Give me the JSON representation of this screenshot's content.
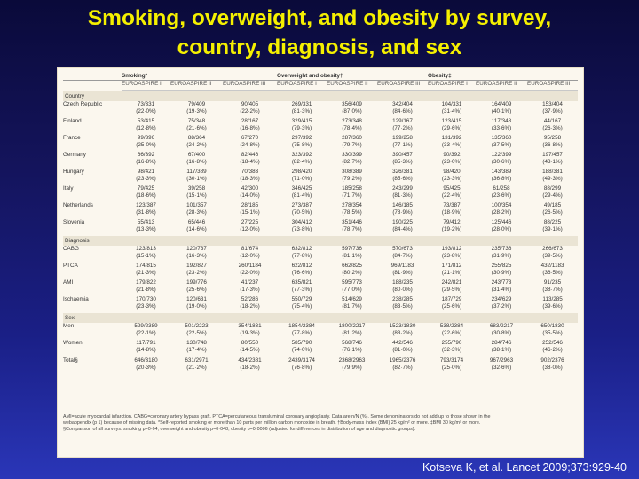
{
  "title": {
    "line1": "Smoking, overweight, and obesity by survey,",
    "line2": "country, diagnosis, and sex"
  },
  "table": {
    "groups": [
      "Smoking*",
      "Overweight and obesity†",
      "Obesity‡"
    ],
    "surveys": [
      "EUROASPIRE I",
      "EUROASPIRE II",
      "EUROASPIRE III"
    ],
    "sections": [
      {
        "name": "Country",
        "rows": [
          {
            "label": "Czech Republic",
            "values": [
              [
                "73/331",
                "(22·0%)"
              ],
              [
                "79/409",
                "(19·3%)"
              ],
              [
                "90/405",
                "(22·2%)"
              ],
              [
                "269/331",
                "(81·3%)"
              ],
              [
                "356/409",
                "(87·0%)"
              ],
              [
                "342/404",
                "(84·6%)"
              ],
              [
                "104/331",
                "(31·4%)"
              ],
              [
                "164/409",
                "(40·1%)"
              ],
              [
                "153/404",
                "(37·9%)"
              ]
            ]
          },
          {
            "label": "Finland",
            "values": [
              [
                "53/415",
                "(12·8%)"
              ],
              [
                "75/348",
                "(21·6%)"
              ],
              [
                "28/167",
                "(16·8%)"
              ],
              [
                "329/415",
                "(79·3%)"
              ],
              [
                "273/348",
                "(78·4%)"
              ],
              [
                "129/167",
                "(77·2%)"
              ],
              [
                "123/415",
                "(29·6%)"
              ],
              [
                "117/348",
                "(33·6%)"
              ],
              [
                "44/167",
                "(26·3%)"
              ]
            ]
          },
          {
            "label": "France",
            "values": [
              [
                "99/396",
                "(25·0%)"
              ],
              [
                "88/364",
                "(24·2%)"
              ],
              [
                "67/270",
                "(24·8%)"
              ],
              [
                "297/392",
                "(75·8%)"
              ],
              [
                "287/360",
                "(79·7%)"
              ],
              [
                "199/258",
                "(77·1%)"
              ],
              [
                "131/392",
                "(33·4%)"
              ],
              [
                "135/360",
                "(37·5%)"
              ],
              [
                "95/258",
                "(36·8%)"
              ]
            ]
          },
          {
            "label": "Germany",
            "values": [
              [
                "66/392",
                "(16·8%)"
              ],
              [
                "67/400",
                "(16·8%)"
              ],
              [
                "82/446",
                "(18·4%)"
              ],
              [
                "323/392",
                "(82·4%)"
              ],
              [
                "330/399",
                "(82·7%)"
              ],
              [
                "390/457",
                "(85·3%)"
              ],
              [
                "90/392",
                "(23·0%)"
              ],
              [
                "122/399",
                "(30·6%)"
              ],
              [
                "197/457",
                "(43·1%)"
              ]
            ]
          },
          {
            "label": "Hungary",
            "values": [
              [
                "98/421",
                "(23·3%)"
              ],
              [
                "117/389",
                "(30·1%)"
              ],
              [
                "70/383",
                "(18·3%)"
              ],
              [
                "298/420",
                "(71·0%)"
              ],
              [
                "308/389",
                "(79·2%)"
              ],
              [
                "326/381",
                "(85·6%)"
              ],
              [
                "98/420",
                "(23·3%)"
              ],
              [
                "143/389",
                "(36·8%)"
              ],
              [
                "188/381",
                "(49·3%)"
              ]
            ]
          },
          {
            "label": "Italy",
            "values": [
              [
                "79/425",
                "(18·6%)"
              ],
              [
                "39/258",
                "(15·1%)"
              ],
              [
                "42/300",
                "(14·0%)"
              ],
              [
                "346/425",
                "(81·4%)"
              ],
              [
                "185/258",
                "(71·7%)"
              ],
              [
                "243/299",
                "(81·3%)"
              ],
              [
                "95/425",
                "(22·4%)"
              ],
              [
                "61/258",
                "(23·6%)"
              ],
              [
                "88/299",
                "(29·4%)"
              ]
            ]
          },
          {
            "label": "Netherlands",
            "values": [
              [
                "123/387",
                "(31·8%)"
              ],
              [
                "101/357",
                "(28·3%)"
              ],
              [
                "28/185",
                "(15·1%)"
              ],
              [
                "273/387",
                "(70·5%)"
              ],
              [
                "278/354",
                "(78·5%)"
              ],
              [
                "146/185",
                "(78·9%)"
              ],
              [
                "73/387",
                "(18·9%)"
              ],
              [
                "100/354",
                "(28·2%)"
              ],
              [
                "49/185",
                "(26·5%)"
              ]
            ]
          },
          {
            "label": "Slovenia",
            "values": [
              [
                "55/413",
                "(13·3%)"
              ],
              [
                "65/446",
                "(14·6%)"
              ],
              [
                "27/225",
                "(12·0%)"
              ],
              [
                "304/412",
                "(73·8%)"
              ],
              [
                "351/446",
                "(78·7%)"
              ],
              [
                "190/225",
                "(84·4%)"
              ],
              [
                "79/412",
                "(19·2%)"
              ],
              [
                "125/446",
                "(28·0%)"
              ],
              [
                "88/225",
                "(39·1%)"
              ]
            ]
          }
        ]
      },
      {
        "name": "Diagnosis",
        "rows": [
          {
            "label": "CABG",
            "values": [
              [
                "123/813",
                "(15·1%)"
              ],
              [
                "120/737",
                "(16·3%)"
              ],
              [
                "81/674",
                "(12·0%)"
              ],
              [
                "632/812",
                "(77·8%)"
              ],
              [
                "597/736",
                "(81·1%)"
              ],
              [
                "570/673",
                "(84·7%)"
              ],
              [
                "193/812",
                "(23·8%)"
              ],
              [
                "235/736",
                "(31·9%)"
              ],
              [
                "266/673",
                "(39·5%)"
              ]
            ]
          },
          {
            "label": "PTCA",
            "values": [
              [
                "174/815",
                "(21·3%)"
              ],
              [
                "192/827",
                "(23·2%)"
              ],
              [
                "260/1184",
                "(22·0%)"
              ],
              [
                "622/812",
                "(76·6%)"
              ],
              [
                "662/825",
                "(80·2%)"
              ],
              [
                "969/1183",
                "(81·9%)"
              ],
              [
                "171/812",
                "(21·1%)"
              ],
              [
                "255/825",
                "(30·9%)"
              ],
              [
                "432/1183",
                "(36·5%)"
              ]
            ]
          },
          {
            "label": "AMI",
            "values": [
              [
                "179/822",
                "(21·8%)"
              ],
              [
                "199/776",
                "(25·6%)"
              ],
              [
                "41/237",
                "(17·3%)"
              ],
              [
                "635/821",
                "(77·3%)"
              ],
              [
                "595/773",
                "(77·0%)"
              ],
              [
                "188/235",
                "(80·0%)"
              ],
              [
                "242/821",
                "(29·5%)"
              ],
              [
                "243/773",
                "(31·4%)"
              ],
              [
                "91/235",
                "(38·7%)"
              ]
            ]
          },
          {
            "label": "Ischaemia",
            "values": [
              [
                "170/730",
                "(23·3%)"
              ],
              [
                "120/631",
                "(19·0%)"
              ],
              [
                "52/286",
                "(18·2%)"
              ],
              [
                "550/729",
                "(75·4%)"
              ],
              [
                "514/629",
                "(81·7%)"
              ],
              [
                "238/285",
                "(83·5%)"
              ],
              [
                "187/729",
                "(25·6%)"
              ],
              [
                "234/629",
                "(37·2%)"
              ],
              [
                "113/285",
                "(39·6%)"
              ]
            ]
          }
        ]
      },
      {
        "name": "Sex",
        "rows": [
          {
            "label": "Men",
            "values": [
              [
                "529/2389",
                "(22·1%)"
              ],
              [
                "501/2223",
                "(22·5%)"
              ],
              [
                "354/1831",
                "(19·3%)"
              ],
              [
                "1854/2384",
                "(77·8%)"
              ],
              [
                "1800/2217",
                "(81·2%)"
              ],
              [
                "1523/1830",
                "(83·2%)"
              ],
              [
                "538/2384",
                "(22·6%)"
              ],
              [
                "683/2217",
                "(30·8%)"
              ],
              [
                "650/1830",
                "(35·5%)"
              ]
            ]
          },
          {
            "label": "Women",
            "values": [
              [
                "117/791",
                "(14·8%)"
              ],
              [
                "130/748",
                "(17·4%)"
              ],
              [
                "80/550",
                "(14·5%)"
              ],
              [
                "585/790",
                "(74·0%)"
              ],
              [
                "568/746",
                "(76·1%)"
              ],
              [
                "442/546",
                "(81·0%)"
              ],
              [
                "255/790",
                "(32·3%)"
              ],
              [
                "284/746",
                "(38·1%)"
              ],
              [
                "252/546",
                "(46·2%)"
              ]
            ]
          }
        ]
      }
    ],
    "total": {
      "label": "Total§",
      "values": [
        [
          "646/3180",
          "(20·3%)"
        ],
        [
          "631/2971",
          "(21·2%)"
        ],
        [
          "434/2381",
          "(18·2%)"
        ],
        [
          "2439/3174",
          "(76·8%)"
        ],
        [
          "2368/2963",
          "(79·9%)"
        ],
        [
          "1965/2376",
          "(82·7%)"
        ],
        [
          "793/3174",
          "(25·0%)"
        ],
        [
          "967/2963",
          "(32·6%)"
        ],
        [
          "902/2376",
          "(38·0%)"
        ]
      ]
    }
  },
  "footnotes": [
    "AMI=acute myocardial infarction. CABG=coronary artery bypass graft. PTCA=percutaneous transluminal coronary angioplasty. Data are n/N (%). Some denominators do not add up to those shown in the",
    "webappendix (p 1) because of missing data. *Self-reported smoking or more than 10 parts per million carbon monoxide in breath. †Body-mass index (BMI) 25 kg/m² or more. ‡BMI 30 kg/m² or more.",
    "§Comparison of all surveys: smoking p=0·64; overweight and obesity p=0·048; obesity p=0·0006 (adjusted for differences in distribution of age and diagnostic groups)."
  ],
  "citation": "Kotseva K, et al. Lancet 2009;373:929-40"
}
